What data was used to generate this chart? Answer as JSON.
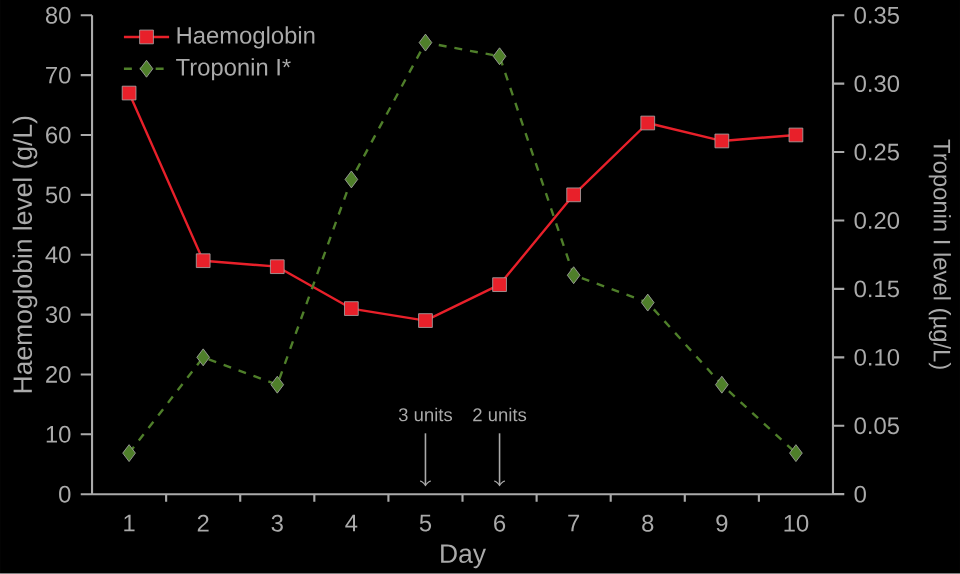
{
  "chart_data": {
    "type": "line",
    "xlabel": "Day",
    "ylabel": "Haemoglobin level (g/L)",
    "y2label": "Troponin I level (µg/L)",
    "x": [
      1,
      2,
      3,
      4,
      5,
      6,
      7,
      8,
      9,
      10
    ],
    "xlim": [
      0.5,
      10.5
    ],
    "xticks": [
      1,
      2,
      3,
      4,
      5,
      6,
      7,
      8,
      9,
      10
    ],
    "ylim": [
      0,
      80
    ],
    "yticks": [
      0,
      10,
      20,
      30,
      40,
      50,
      60,
      70,
      80
    ],
    "y2lim": [
      0,
      0.35
    ],
    "y2ticks": [
      0,
      0.05,
      {
        "value": 0.1,
        "label": "0.10"
      },
      0.15,
      {
        "value": 0.2,
        "label": "0.20"
      },
      0.25,
      {
        "value": 0.3,
        "label": "0.30"
      },
      0.35
    ],
    "series": [
      {
        "name": "Haemoglobin",
        "color": "#e8202a",
        "values": [
          67,
          39,
          38,
          31,
          29,
          35,
          50,
          62,
          59,
          60
        ],
        "marker": "square",
        "line_style": "solid"
      },
      {
        "name": "Troponin I*",
        "color": "#4f7f2a",
        "values": [
          0.03,
          0.1,
          0.08,
          0.23,
          0.33,
          0.32,
          0.16,
          0.14,
          0.08,
          0.03
        ],
        "axis": "y2",
        "marker": "diamond",
        "line_style": "dashed"
      }
    ],
    "legend": "top left",
    "annotations": [
      "3 units",
      "2 units"
    ]
  }
}
